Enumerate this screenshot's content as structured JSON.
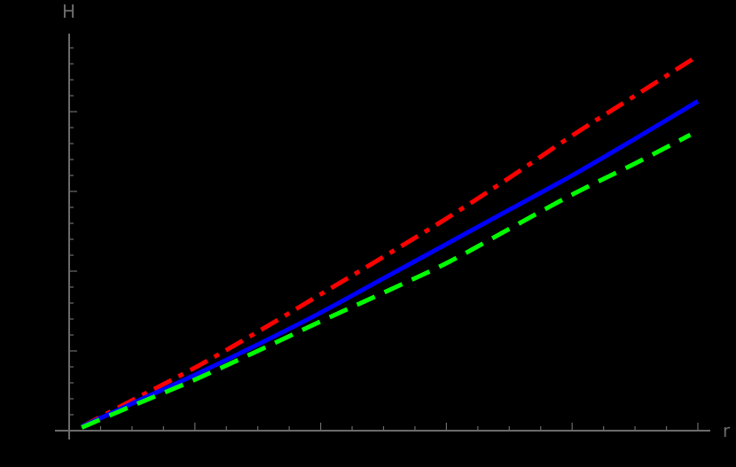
{
  "chart_data": {
    "type": "line",
    "title": "",
    "xlabel": "r",
    "ylabel": "H",
    "xlim": [
      0,
      5.1
    ],
    "ylim": [
      0,
      5.0
    ],
    "grid": false,
    "legend": null,
    "tick_labels_visible": false,
    "x_major_ticks": [
      1,
      2,
      3,
      4,
      5
    ],
    "x_minor_step": 0.25,
    "y_major_ticks": [
      1,
      2,
      3,
      4
    ],
    "y_minor_step": 0.2,
    "axis_color": "#6b6b6b",
    "background": "#000000",
    "series": [
      {
        "name": "red-dash-dot",
        "color": "#ff0000",
        "style": "dashdot",
        "x": [
          0.1,
          0.5,
          1,
          1.5,
          2,
          2.5,
          3,
          3.5,
          4,
          4.5,
          5.0
        ],
        "y": [
          0.05,
          0.38,
          0.79,
          1.24,
          1.71,
          2.18,
          2.66,
          3.17,
          3.7,
          4.2,
          4.7
        ]
      },
      {
        "name": "blue-solid",
        "color": "#0000ff",
        "style": "solid",
        "x": [
          0.1,
          0.5,
          1,
          1.5,
          2,
          2.5,
          3,
          3.5,
          4,
          4.5,
          5.0
        ],
        "y": [
          0.05,
          0.34,
          0.7,
          1.08,
          1.48,
          1.91,
          2.34,
          2.77,
          3.2,
          3.66,
          4.13
        ]
      },
      {
        "name": "green-dashed",
        "color": "#00ff00",
        "style": "dashed",
        "x": [
          0.1,
          0.5,
          1,
          1.5,
          2,
          2.5,
          3,
          3.5,
          4,
          4.5,
          4.94
        ],
        "y": [
          0.04,
          0.31,
          0.64,
          1.0,
          1.37,
          1.73,
          2.1,
          2.53,
          2.96,
          3.35,
          3.71
        ]
      }
    ]
  },
  "labels": {
    "x": "r",
    "y": "H"
  }
}
